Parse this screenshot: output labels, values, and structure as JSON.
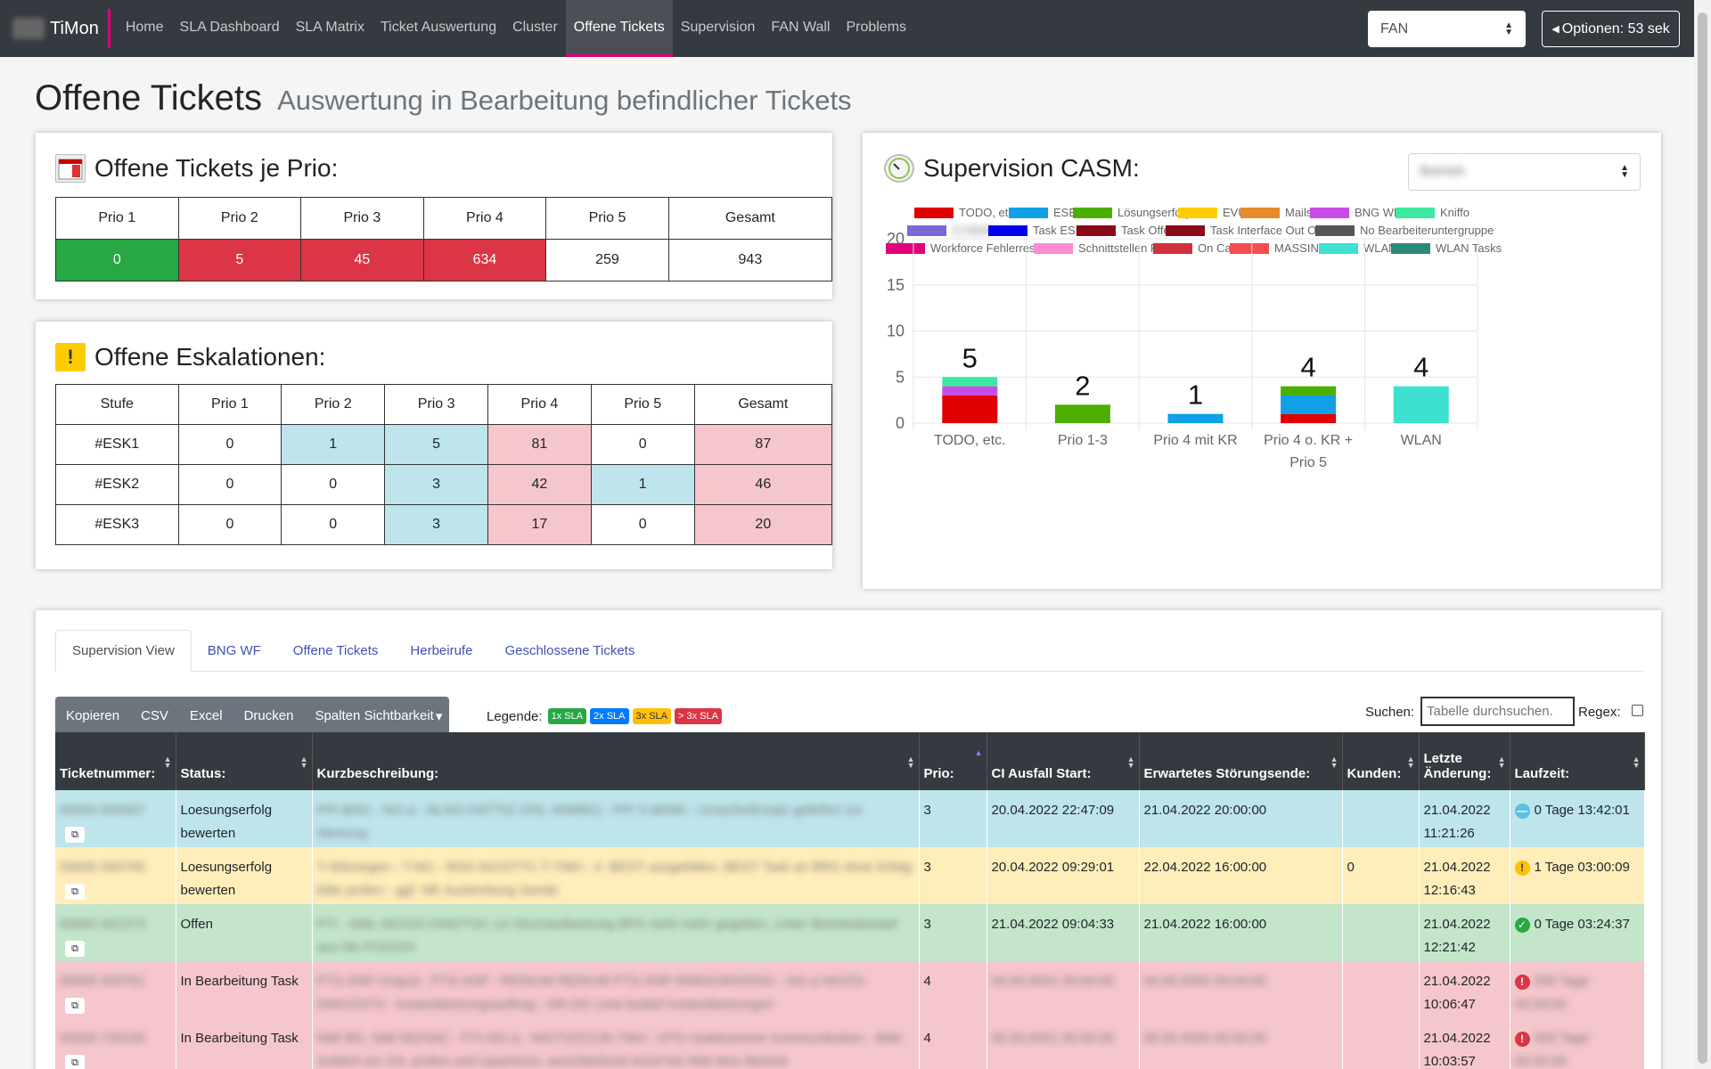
{
  "app": {
    "name": "TiMon"
  },
  "nav": {
    "items": [
      "Home",
      "SLA Dashboard",
      "SLA Matrix",
      "Ticket Auswertung",
      "Cluster",
      "Offene Tickets",
      "Supervision",
      "FAN Wall",
      "Problems"
    ],
    "active": "Offene Tickets",
    "select_value": "FAN",
    "options_label": "Optionen: 53 sek"
  },
  "page": {
    "title": "Offene Tickets",
    "subtitle": "Auswertung in Bearbeitung befindlicher Tickets"
  },
  "prio_card": {
    "title": "Offene Tickets je Prio:",
    "headers": [
      "Prio 1",
      "Prio 2",
      "Prio 3",
      "Prio 4",
      "Prio 5",
      "Gesamt"
    ],
    "values": [
      "0",
      "5",
      "45",
      "634",
      "259",
      "943"
    ]
  },
  "esk_card": {
    "title": "Offene Eskalationen:",
    "headers": [
      "Stufe",
      "Prio 1",
      "Prio 2",
      "Prio 3",
      "Prio 4",
      "Prio 5",
      "Gesamt"
    ],
    "rows": [
      [
        "#ESK1",
        "0",
        "1",
        "5",
        "81",
        "0",
        "87"
      ],
      [
        "#ESK2",
        "0",
        "0",
        "3",
        "42",
        "1",
        "46"
      ],
      [
        "#ESK3",
        "0",
        "0",
        "3",
        "17",
        "0",
        "20"
      ]
    ]
  },
  "supervision_card": {
    "title": "Supervision CASM:",
    "select_value": "Betrieb"
  },
  "chart_data": {
    "type": "bar",
    "stacked": true,
    "categories": [
      "TODO, etc.",
      "Prio 1-3",
      "Prio 4 mit KR",
      "Prio 4 o. KR + Prio 5",
      "WLAN"
    ],
    "totals": [
      "5",
      "2",
      "1",
      "4",
      "4"
    ],
    "ylim": [
      0,
      20
    ],
    "yticks": [
      "0",
      "5",
      "10",
      "15",
      "20"
    ],
    "grid": true,
    "legend_position": "top",
    "legend": [
      {
        "name": "TODO, etc.",
        "color": "#e00000"
      },
      {
        "name": "ESE",
        "color": "#0fa0e6"
      },
      {
        "name": "Lösungserfolg",
        "color": "#4caf00"
      },
      {
        "name": "EVU",
        "color": "#ffcc00"
      },
      {
        "name": "Mails",
        "color": "#e8892b"
      },
      {
        "name": "BNG WF",
        "color": "#c84de8"
      },
      {
        "name": "Kniffo",
        "color": "#3de8a0"
      },
      {
        "name": "CCMSF",
        "color": "#7b68d8"
      },
      {
        "name": "Task ESE",
        "color": "#0000ee"
      },
      {
        "name": "Task Offen",
        "color": "#8b0a1a"
      },
      {
        "name": "Task Interface Out Offen",
        "color": "#8b0a1a"
      },
      {
        "name": "No Bearbeiteruntergruppe",
        "color": "#555555"
      },
      {
        "name": "Workforce Fehlerressort",
        "color": "#e0007a"
      },
      {
        "name": "Schnittstellen Fail",
        "color": "#ff8ad0"
      },
      {
        "name": "On Call",
        "color": "#d0303c"
      },
      {
        "name": "MASSINC",
        "color": "#f25050"
      },
      {
        "name": "WLAN",
        "color": "#3ee0d0"
      },
      {
        "name": "WLAN Tasks",
        "color": "#2a8a78"
      }
    ],
    "series": [
      {
        "name": "TODO, etc.",
        "values": [
          3,
          0,
          0,
          1,
          0
        ]
      },
      {
        "name": "ESE",
        "values": [
          0,
          0,
          1,
          2,
          0
        ]
      },
      {
        "name": "Lösungserfolg",
        "values": [
          0,
          2,
          0,
          1,
          0
        ]
      },
      {
        "name": "BNG WF",
        "values": [
          1,
          0,
          0,
          0,
          0
        ]
      },
      {
        "name": "Kniffo",
        "values": [
          1,
          0,
          0,
          0,
          0
        ]
      },
      {
        "name": "WLAN",
        "values": [
          0,
          0,
          0,
          0,
          4
        ]
      }
    ]
  },
  "tabs": [
    "Supervision View",
    "BNG WF",
    "Offene Tickets",
    "Herbeirufe",
    "Geschlossene Tickets"
  ],
  "toolbar": {
    "buttons": [
      "Kopieren",
      "CSV",
      "Excel",
      "Drucken",
      "Spalten Sichtbarkeit"
    ],
    "legend_label": "Legende:",
    "badges": [
      {
        "label": "1x SLA",
        "color": "#28a745"
      },
      {
        "label": "2x SLA",
        "color": "#007bff"
      },
      {
        "label": "3x SLA",
        "color": "#ffc107"
      },
      {
        "label": "> 3x SLA",
        "color": "#dc3545"
      }
    ],
    "search_label": "Suchen:",
    "search_placeholder": "Tabelle durchsuchen.",
    "regex_label": "Regex:"
  },
  "table": {
    "headers": [
      "Ticketnummer:",
      "Status:",
      "Kurzbeschreibung:",
      "Prio:",
      "CI Ausfall Start:",
      "Erwartetes Störungsende:",
      "Kunden:",
      "Letzte Änderung:",
      "Laufzeit:"
    ],
    "rows": [
      {
        "ticket": "00000 000007",
        "status": "Loesungserfolg bewerten",
        "desc": "PPI BNG - NG-a - NLNG-HSTT(C-DSL-WWBG) - PPI 3 defekt - Ursache/Ersatz geliefert zur Wertung",
        "prio": "3",
        "start": "20.04.2022 22:47:09",
        "end": "21.04.2022 20:00:00",
        "kunden": "",
        "changed": "21.04.2022 11:21:26",
        "laufzeit": "0 Tage 13:42:01",
        "color": "blue",
        "icon": "minus"
      },
      {
        "ticket": "00000 000705",
        "status": "Loesungserfolg bewerten",
        "desc": "T-Störungen - T-NG - RDS-NG/STTC-T-TMH - 4 -BEST ausgefallen, BEST Task an BRS ohne Erfolg bitte prüfen - ggf. NE-Ausbreitung Sende",
        "prio": "3",
        "start": "20.04.2022 09:29:01",
        "end": "22.04.2022 16:00:00",
        "kunden": "0",
        "changed": "21.04.2022 12:16:43",
        "laufzeit": "1 Tage 03:00:09",
        "color": "yellow",
        "icon": "warn"
      },
      {
        "ticket": "00000 001373",
        "status": "Offen",
        "desc": "PTI - NML NG/GS-ONG/TSC-1A Stromaufwertung BPS nicht mehr gegeben, Unter Betriebsbedarf aus NK-POOOH",
        "prio": "3",
        "start": "21.04.2022 09:04:33",
        "end": "21.04.2022 16:00:00",
        "kunden": "",
        "changed": "21.04.2022 12:21:42",
        "laufzeit": "0 Tage 03:24:37",
        "color": "green",
        "icon": "ok"
      },
      {
        "ticket": "00000 000761",
        "status": "In Bearbeitung Task",
        "desc": "PTS-XNP-Output - PTS-XNP - REDIUM REDIUM PTS-XNP-RMNG/WS/DSG - NG-a NG/ZS-DNG/ZSTS - Instandsetzungsauftrag - NR-DG Linie bedarf Instandsetzungen",
        "prio": "4",
        "start": "00.00.0001 00:00:00",
        "end": "00.00.0000 00:00:00",
        "kunden": "",
        "changed": "21.04.2022 10:06:47",
        "laufzeit": "000 Tage 00:00:00",
        "color": "red",
        "icon": "crit"
      },
      {
        "ticket": "00000 735100",
        "status": "In Bearbeitung Task",
        "desc": "NMI BG, NMI NG/VAC - PTI-NG-a - NG/TX/ZCUN-TMH - NTG-Gatekommer Kommunikation - Bitte Anfahrt vor Ort, prüfen und reparieren, anschließend Anruf bei NMI Mon Betrieb",
        "prio": "4",
        "start": "00.00.0001 00:00:00",
        "end": "00.00.0000 00:00:00",
        "kunden": "",
        "changed": "21.04.2022 10:03:57",
        "laufzeit": "000 Tage 00:00:00",
        "color": "red",
        "icon": "crit"
      }
    ]
  }
}
